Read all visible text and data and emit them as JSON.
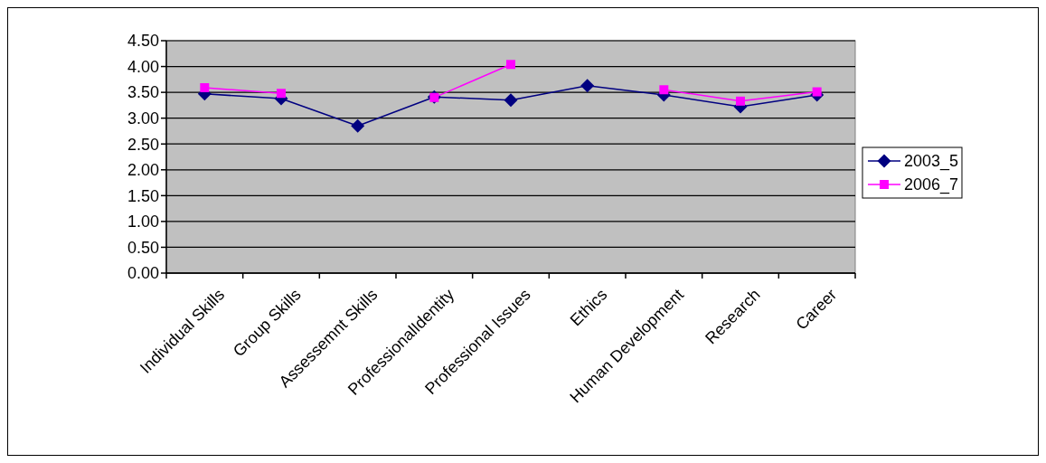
{
  "chart_data": {
    "type": "line",
    "categories": [
      "Individual Skills",
      "Group Skills",
      "Assessemnt Skills",
      "ProfessionalIdentity",
      "Professional Issues",
      "Ethics",
      "Human Development",
      "Research",
      "Career"
    ],
    "series": [
      {
        "name": "2003_5",
        "color": "#000080",
        "marker": "diamond",
        "values": [
          3.47,
          3.38,
          2.85,
          3.41,
          3.35,
          3.63,
          3.45,
          3.22,
          3.45
        ]
      },
      {
        "name": "2006_7",
        "color": "#ff00ff",
        "marker": "square",
        "values": [
          3.59,
          3.48,
          null,
          3.4,
          4.04,
          null,
          3.55,
          3.33,
          3.51
        ]
      }
    ],
    "ylim": [
      0,
      4.5
    ],
    "yticks": [
      {
        "value": 0,
        "label": "0.00"
      },
      {
        "value": 0.5,
        "label": "0.50"
      },
      {
        "value": 1,
        "label": "1.00"
      },
      {
        "value": 1.5,
        "label": "1.50"
      },
      {
        "value": 2,
        "label": "2.00"
      },
      {
        "value": 2.5,
        "label": "2.50"
      },
      {
        "value": 3,
        "label": "3.00"
      },
      {
        "value": 3.5,
        "label": "3.50"
      },
      {
        "value": 4,
        "label": "4.00"
      },
      {
        "value": 4.5,
        "label": "4.50"
      }
    ],
    "grid": "y",
    "legend": "right"
  }
}
